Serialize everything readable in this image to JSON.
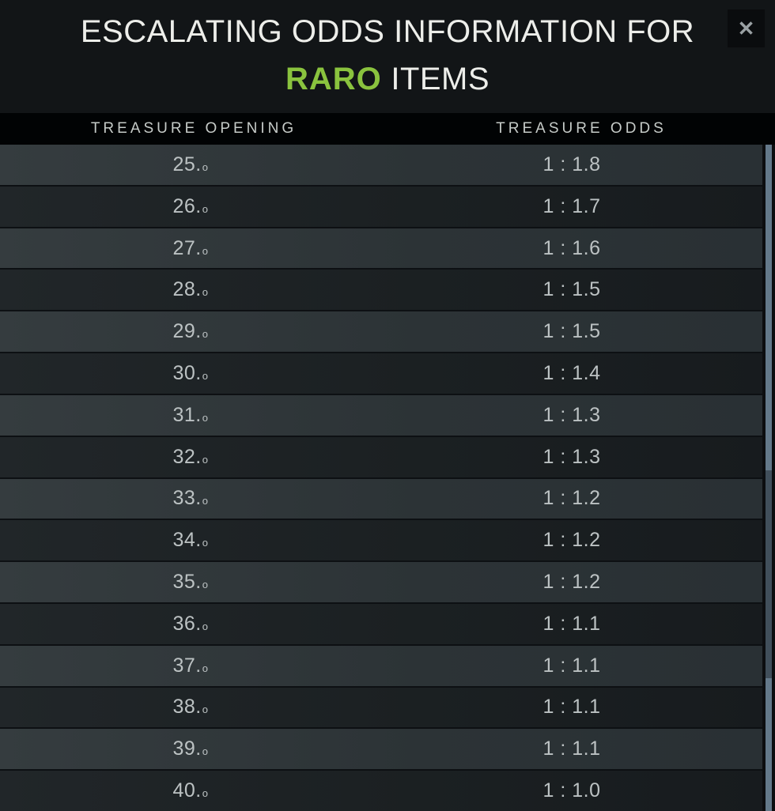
{
  "dialog": {
    "title_line1": "ESCALATING ODDS INFORMATION FOR",
    "rarity_name": "RARO",
    "title_suffix": " ITEMS",
    "close_label": "✕"
  },
  "colors": {
    "rarity_green": "#8ac33e",
    "scrollbar_track": "#64798a",
    "scrollbar_thumb": "#414f5b",
    "row_light": "#2e3538",
    "row_dark": "#1b2022"
  },
  "table": {
    "columns": [
      "TREASURE OPENING",
      "TREASURE ODDS"
    ],
    "rows": [
      {
        "opening": "25.",
        "ordinal": "o",
        "odds": "1 : 1.8"
      },
      {
        "opening": "26.",
        "ordinal": "o",
        "odds": "1 : 1.7"
      },
      {
        "opening": "27.",
        "ordinal": "o",
        "odds": "1 : 1.6"
      },
      {
        "opening": "28.",
        "ordinal": "o",
        "odds": "1 : 1.5"
      },
      {
        "opening": "29.",
        "ordinal": "o",
        "odds": "1 : 1.5"
      },
      {
        "opening": "30.",
        "ordinal": "o",
        "odds": "1 : 1.4"
      },
      {
        "opening": "31.",
        "ordinal": "o",
        "odds": "1 : 1.3"
      },
      {
        "opening": "32.",
        "ordinal": "o",
        "odds": "1 : 1.3"
      },
      {
        "opening": "33.",
        "ordinal": "o",
        "odds": "1 : 1.2"
      },
      {
        "opening": "34.",
        "ordinal": "o",
        "odds": "1 : 1.2"
      },
      {
        "opening": "35.",
        "ordinal": "o",
        "odds": "1 : 1.2"
      },
      {
        "opening": "36.",
        "ordinal": "o",
        "odds": "1 : 1.1"
      },
      {
        "opening": "37.",
        "ordinal": "o",
        "odds": "1 : 1.1"
      },
      {
        "opening": "38.",
        "ordinal": "o",
        "odds": "1 : 1.1"
      },
      {
        "opening": "39.",
        "ordinal": "o",
        "odds": "1 : 1.1"
      },
      {
        "opening": "40.",
        "ordinal": "o",
        "odds": "1 : 1.0"
      }
    ]
  }
}
